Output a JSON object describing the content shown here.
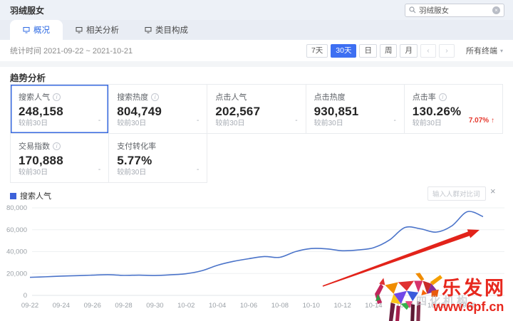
{
  "header": {
    "title": "羽绒服女",
    "search_value": "羽绒服女"
  },
  "icons": {
    "info": "i",
    "clear": "×",
    "close": "×",
    "caret": "▾",
    "up_arrow": "↑"
  },
  "tabs": [
    {
      "label": "概况",
      "active": true
    },
    {
      "label": "相关分析",
      "active": false
    },
    {
      "label": "类目构成",
      "active": false
    }
  ],
  "toolbar": {
    "stat_time": "统计时间 2021-09-22 ~ 2021-10-21",
    "range_buttons": [
      "7天",
      "30天",
      "日",
      "周",
      "月"
    ],
    "active_range": "30天",
    "prev": "‹",
    "next": "›",
    "terminal_filter": "所有终端"
  },
  "section": {
    "title": "趋势分析"
  },
  "metrics": [
    {
      "label": "搜索人气",
      "info": true,
      "value": "248,158",
      "compare_label": "较前30日",
      "compare_value": "-",
      "selected": true
    },
    {
      "label": "搜索热度",
      "info": true,
      "value": "804,749",
      "compare_label": "较前30日",
      "compare_value": "-"
    },
    {
      "label": "点击人气",
      "info": false,
      "value": "202,567",
      "compare_label": "较前30日",
      "compare_value": "-"
    },
    {
      "label": "点击热度",
      "info": false,
      "value": "930,851",
      "compare_label": "较前30日",
      "compare_value": "-"
    },
    {
      "label": "点击率",
      "info": true,
      "value": "130.26%",
      "compare_label": "较前30日",
      "compare_value": "7.07%",
      "trend": "up"
    },
    {
      "label": "交易指数",
      "info": true,
      "value": "170,888",
      "compare_label": "较前30日",
      "compare_value": "-"
    },
    {
      "label": "支付转化率",
      "info": false,
      "value": "5.77%",
      "compare_label": "较前30日",
      "compare_value": "-"
    }
  ],
  "chart": {
    "legend": "搜索人气",
    "compare_placeholder": "输入人群对比词"
  },
  "chart_data": {
    "type": "line",
    "title": "搜索人气",
    "x": [
      "09-22",
      "09-23",
      "09-24",
      "09-25",
      "09-26",
      "09-27",
      "09-28",
      "09-29",
      "09-30",
      "10-01",
      "10-02",
      "10-03",
      "10-04",
      "10-05",
      "10-06",
      "10-07",
      "10-08",
      "10-09",
      "10-10",
      "10-11",
      "10-12",
      "10-13",
      "10-14",
      "10-15",
      "10-16",
      "10-17",
      "10-18",
      "10-19",
      "10-20",
      "10-21"
    ],
    "series": [
      {
        "name": "搜索人气",
        "values": [
          16500,
          17000,
          17600,
          18000,
          18500,
          18900,
          18300,
          18500,
          18200,
          18800,
          19800,
          22500,
          27500,
          31000,
          33500,
          35500,
          34800,
          40000,
          42800,
          42500,
          40800,
          41500,
          43600,
          50500,
          62000,
          60800,
          57800,
          63500,
          76500,
          72000
        ]
      }
    ],
    "ylim": [
      0,
      80000
    ],
    "yticks": [
      0,
      20000,
      40000,
      60000,
      80000
    ],
    "x_label_every": 2,
    "grid": true,
    "legend_position": "top-left",
    "line_color": "#4a73c9"
  },
  "annotation": {
    "type": "arrow",
    "from": [
      453,
      402
    ],
    "to": [
      673,
      323
    ],
    "color": "#e2231a"
  },
  "watermark": {
    "site_name": "乐发网",
    "site_url": "www.6pf.cn",
    "ghost_text": "四化机构"
  }
}
